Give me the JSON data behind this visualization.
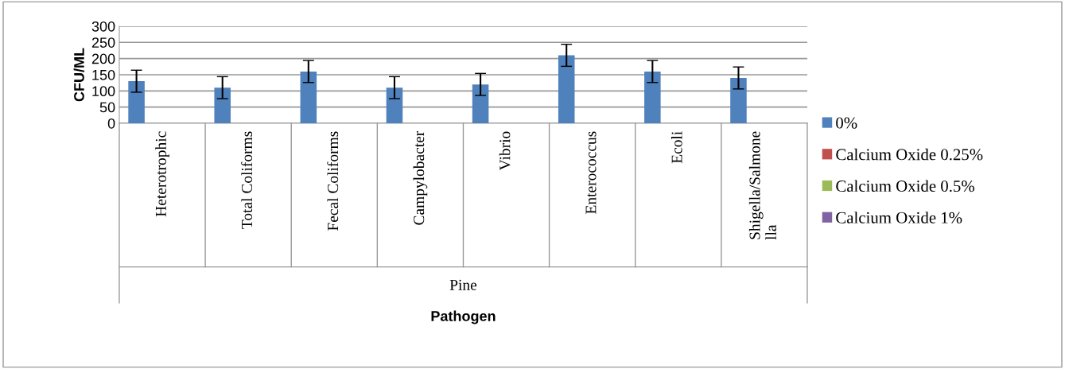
{
  "chart_data": {
    "type": "bar",
    "xlabel": "Pathogen",
    "ylabel": "CFU/ML",
    "categories": [
      "Heterotrophic",
      "Total Coliforms",
      "Fecal Coliforms",
      "Campylobacter",
      "Vibrio",
      "Enterococcus",
      "Ecoli",
      "Shigella/Salmonella"
    ],
    "series": [
      {
        "name": "0%",
        "color": "#4f81bd",
        "values": [
          130,
          110,
          160,
          110,
          120,
          210,
          160,
          140
        ],
        "errors": [
          34,
          34,
          34,
          34,
          34,
          34,
          34,
          34
        ]
      },
      {
        "name": "Calcium Oxide 0.25%",
        "color": "#c0504d",
        "values": [
          null,
          null,
          null,
          null,
          null,
          null,
          null,
          null
        ]
      },
      {
        "name": "Calcium Oxide 0.5%",
        "color": "#9bbb59",
        "values": [
          null,
          null,
          null,
          null,
          null,
          null,
          null,
          null
        ]
      },
      {
        "name": "Calcium Oxide 1%",
        "color": "#8064a2",
        "values": [
          null,
          null,
          null,
          null,
          null,
          null,
          null,
          null
        ]
      }
    ],
    "annotations": [
      "Pine"
    ],
    "ylim": [
      0,
      300
    ],
    "yticks": [
      0,
      50,
      100,
      150,
      200,
      250,
      300
    ],
    "grid": "y",
    "legend": "right"
  }
}
